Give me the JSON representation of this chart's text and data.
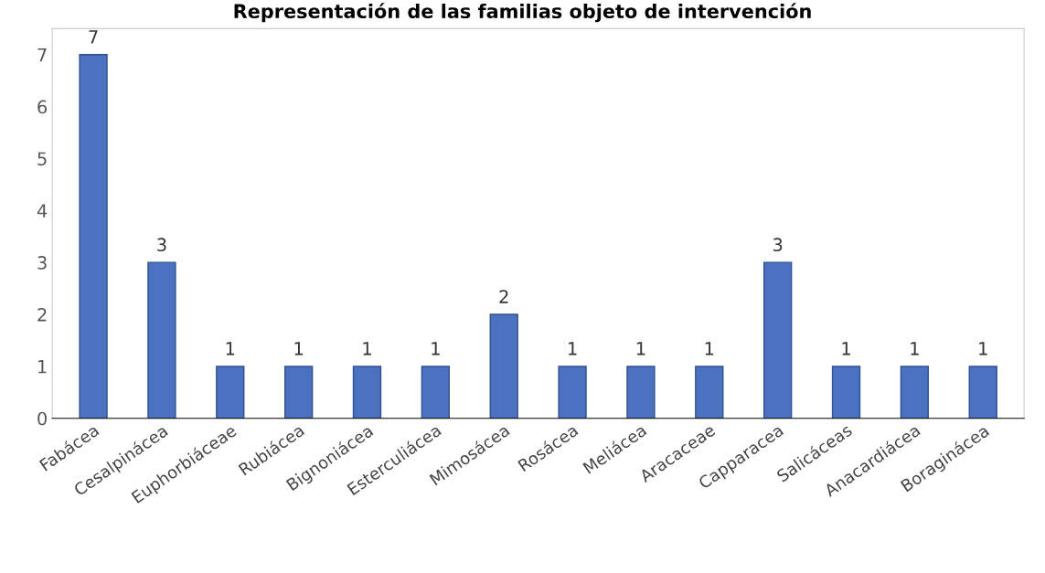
{
  "chart_data": {
    "type": "bar",
    "title": "Representación de las familias objeto de intervención",
    "categories": [
      "Fabácea",
      "Cesalpinácea",
      "Euphorbiáceae",
      "Rubiácea",
      "Bignoniácea",
      "Esterculiácea",
      "Mimosácea",
      "Rosácea",
      "Meliácea",
      "Aracaceae",
      "Capparacea",
      "Salicáceas",
      "Anacardiácea",
      "Boraginácea"
    ],
    "values": [
      7,
      3,
      1,
      1,
      1,
      1,
      2,
      1,
      1,
      1,
      3,
      1,
      1,
      1
    ],
    "color": "#4a72c0",
    "ylim": [
      0,
      7.5
    ],
    "yticks": [
      0,
      1,
      2,
      3,
      4,
      5,
      6,
      7
    ],
    "grid": false,
    "data_labels": true
  }
}
